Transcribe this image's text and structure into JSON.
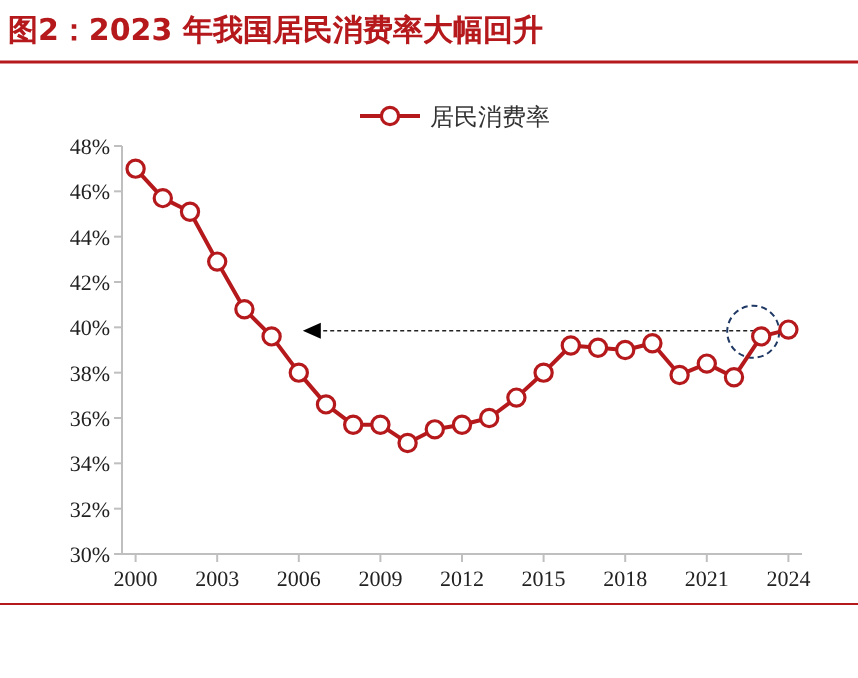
{
  "chart_data": {
    "type": "line",
    "title": "图2：2023 年我国居民消费率大幅回升",
    "categories": [
      "2000",
      null,
      null,
      "2003",
      null,
      null,
      "2006",
      null,
      null,
      "2009",
      null,
      null,
      "2012",
      null,
      null,
      "2015",
      null,
      null,
      "2018",
      null,
      null,
      "2021",
      null,
      null,
      "2024"
    ],
    "series": [
      {
        "name": "居民消费率",
        "color": "#b5191c",
        "values": [
          47.0,
          45.7,
          45.1,
          42.9,
          40.8,
          39.6,
          38.0,
          36.6,
          35.7,
          35.7,
          34.9,
          35.5,
          35.7,
          36.0,
          36.9,
          38.0,
          39.2,
          39.1,
          39.0,
          39.3,
          37.9,
          38.4,
          37.8,
          39.6,
          39.9
        ]
      }
    ],
    "ylim": [
      30,
      48
    ],
    "yticks": [
      {
        "value": 30,
        "label": "30%"
      },
      {
        "value": 32,
        "label": "32%"
      },
      {
        "value": 34,
        "label": "34%"
      },
      {
        "value": 36,
        "label": "36%"
      },
      {
        "value": 38,
        "label": "38%"
      },
      {
        "value": 40,
        "label": "40%"
      },
      {
        "value": 42,
        "label": "42%"
      },
      {
        "value": 44,
        "label": "44%"
      },
      {
        "value": 46,
        "label": "46%"
      },
      {
        "value": 48,
        "label": "48%"
      }
    ],
    "legend": "top",
    "marker": "circle",
    "line_style": "solid",
    "grid": false
  }
}
